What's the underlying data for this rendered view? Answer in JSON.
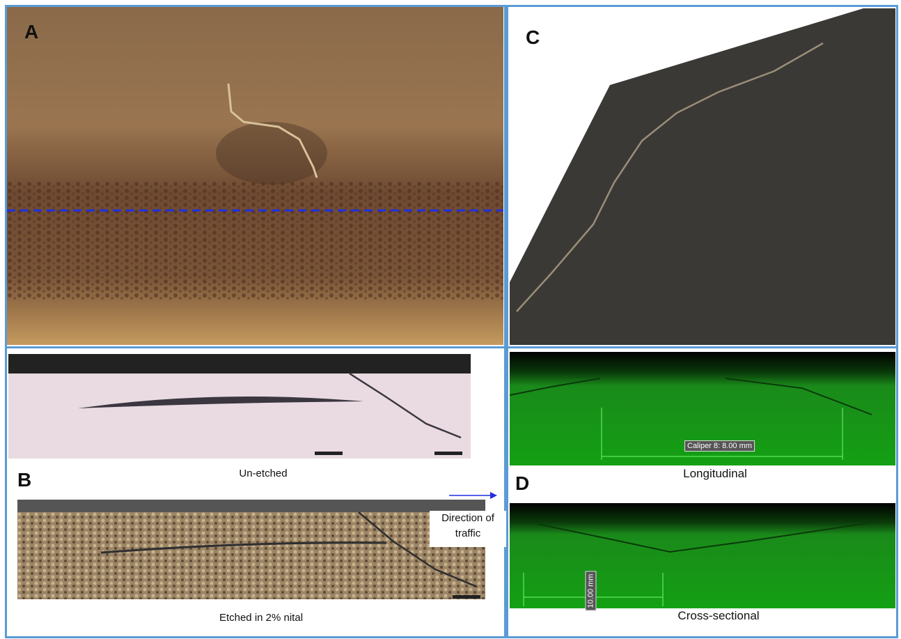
{
  "panels": [
    {
      "label": "A"
    },
    {
      "label": "B",
      "captions": [
        "Un-etched",
        "Etched in 2% nital"
      ]
    },
    {
      "label": "C"
    },
    {
      "label": "D",
      "captions": [
        "Longitudinal",
        "Cross-sectional"
      ],
      "measurements": [
        "Caliper 8: 8.00 mm",
        "10.00 mm"
      ]
    }
  ],
  "annotation": "Direction of traffic"
}
